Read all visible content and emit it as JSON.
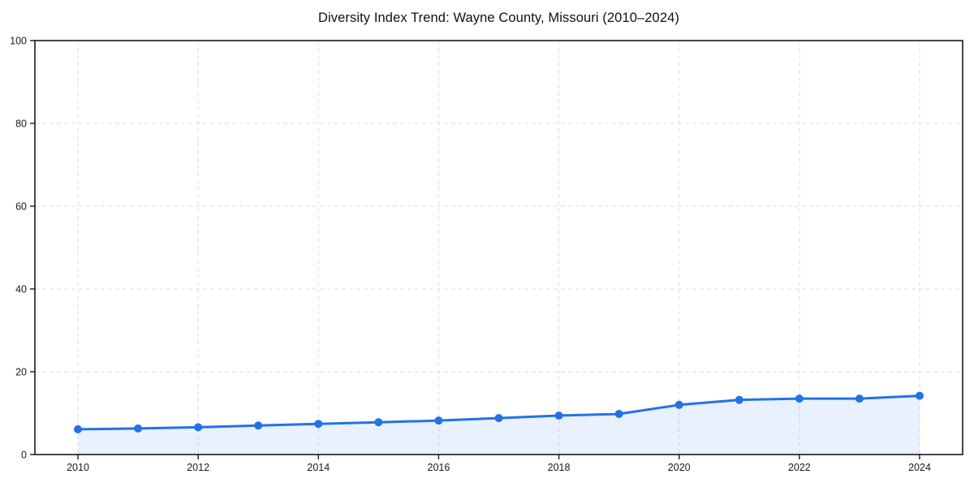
{
  "chart_data": {
    "type": "area",
    "title": "Diversity Index Trend: Wayne County, Missouri (2010–2024)",
    "xlabel": "",
    "ylabel": "",
    "x": [
      2010,
      2011,
      2012,
      2013,
      2014,
      2015,
      2016,
      2017,
      2018,
      2019,
      2020,
      2021,
      2022,
      2023,
      2024
    ],
    "values": [
      6.1,
      6.3,
      6.6,
      7.0,
      7.4,
      7.8,
      8.2,
      8.8,
      9.4,
      9.8,
      12.0,
      13.2,
      13.5,
      13.5,
      14.2
    ],
    "xlim": [
      2010,
      2024
    ],
    "ylim": [
      0,
      100
    ],
    "xticks": [
      2010,
      2012,
      2014,
      2016,
      2018,
      2020,
      2022,
      2024
    ],
    "yticks": [
      0,
      20,
      40,
      60,
      80,
      100
    ],
    "grid": true,
    "grid_style": "dashed",
    "legend": "none",
    "marker": "circle",
    "colors": {
      "line": "#2172e8",
      "marker": "#2172e8",
      "fill": "rgba(33,114,232,0.10)",
      "grid": "#dedede",
      "axis": "#1a1a1a",
      "tick_text": "#1a1a1a",
      "background": "#ffffff"
    }
  }
}
